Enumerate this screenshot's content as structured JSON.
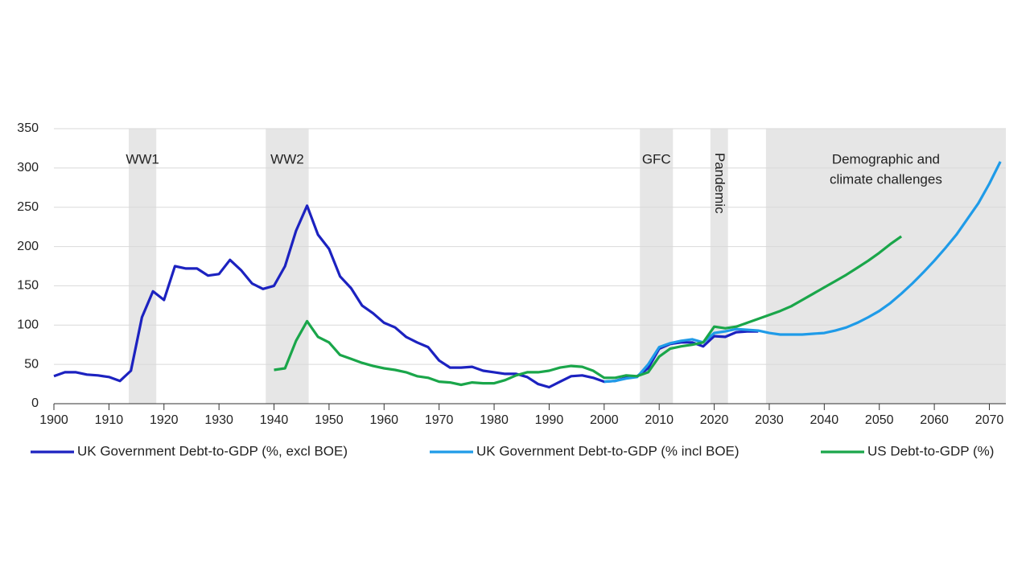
{
  "chart_data": {
    "type": "line",
    "x": [
      1900,
      1902,
      1904,
      1906,
      1908,
      1910,
      1912,
      1914,
      1916,
      1918,
      1920,
      1922,
      1924,
      1926,
      1928,
      1930,
      1932,
      1934,
      1936,
      1938,
      1940,
      1942,
      1944,
      1946,
      1948,
      1950,
      1952,
      1954,
      1956,
      1958,
      1960,
      1962,
      1964,
      1966,
      1968,
      1970,
      1972,
      1974,
      1976,
      1978,
      1980,
      1982,
      1984,
      1986,
      1988,
      1990,
      1992,
      1994,
      1996,
      1998,
      2000,
      2002,
      2004,
      2006,
      2008,
      2010,
      2012,
      2014,
      2016,
      2018,
      2020,
      2022,
      2024,
      2026,
      2028,
      2030,
      2032,
      2034,
      2036,
      2038,
      2040,
      2042,
      2044,
      2046,
      2048,
      2050,
      2052,
      2054,
      2056,
      2058,
      2060,
      2062,
      2064,
      2066,
      2068,
      2070,
      2072
    ],
    "series": [
      {
        "name": "UK Government Debt-to-GDP (%, excl BOE)",
        "color": "#1c22c0",
        "values": [
          35,
          40,
          40,
          37,
          36,
          34,
          29,
          42,
          110,
          143,
          132,
          175,
          172,
          172,
          163,
          165,
          183,
          170,
          153,
          146,
          150,
          175,
          220,
          252,
          215,
          197,
          162,
          147,
          125,
          115,
          103,
          97,
          85,
          78,
          72,
          55,
          46,
          46,
          47,
          42,
          40,
          38,
          38,
          34,
          25,
          21,
          28,
          35,
          36,
          33,
          28,
          29,
          33,
          35,
          45,
          70,
          76,
          78,
          78,
          73,
          86,
          85,
          91,
          92,
          92,
          null,
          null,
          null,
          null,
          null,
          null,
          null,
          null,
          null,
          null,
          null,
          null,
          null,
          null,
          null,
          null,
          null,
          null,
          null,
          null,
          null,
          null
        ]
      },
      {
        "name": "UK Government Debt-to-GDP (% incl BOE)",
        "color": "#1f9be8",
        "values": [
          null,
          null,
          null,
          null,
          null,
          null,
          null,
          null,
          null,
          null,
          null,
          null,
          null,
          null,
          null,
          null,
          null,
          null,
          null,
          null,
          null,
          null,
          null,
          null,
          null,
          null,
          null,
          null,
          null,
          null,
          null,
          null,
          null,
          null,
          null,
          null,
          null,
          null,
          null,
          null,
          null,
          null,
          null,
          null,
          null,
          null,
          null,
          null,
          null,
          null,
          28,
          29,
          32,
          34,
          50,
          72,
          77,
          80,
          82,
          78,
          90,
          92,
          95,
          94,
          93,
          90,
          88,
          88,
          88,
          89,
          90,
          93,
          97,
          103,
          110,
          118,
          128,
          140,
          153,
          167,
          182,
          198,
          215,
          235,
          255,
          280,
          308
        ]
      },
      {
        "name": "US Debt-to-GDP (%)",
        "color": "#1aa64a",
        "values": [
          null,
          null,
          null,
          null,
          null,
          null,
          null,
          null,
          null,
          null,
          null,
          null,
          null,
          null,
          null,
          null,
          null,
          null,
          null,
          null,
          43,
          45,
          80,
          105,
          85,
          78,
          62,
          57,
          52,
          48,
          45,
          43,
          40,
          35,
          33,
          28,
          27,
          24,
          27,
          26,
          26,
          30,
          36,
          40,
          40,
          42,
          46,
          48,
          47,
          42,
          33,
          33,
          36,
          35,
          40,
          60,
          70,
          73,
          75,
          78,
          98,
          96,
          98,
          103,
          108,
          113,
          118,
          124,
          132,
          140,
          148,
          156,
          164,
          173,
          182,
          192,
          203,
          213,
          null,
          null,
          null,
          null,
          null,
          null,
          null,
          null,
          null
        ]
      }
    ],
    "spans": [
      {
        "label_lines": [
          "WW1"
        ],
        "start": 1913.6,
        "end": 1918.6,
        "color": "#e6e6e6"
      },
      {
        "label_lines": [
          "WW2"
        ],
        "start": 1938.5,
        "end": 1946.3,
        "color": "#e6e6e6"
      },
      {
        "label_lines": [
          "GFC"
        ],
        "start": 2006.5,
        "end": 2012.5,
        "color": "#e6e6e6"
      },
      {
        "label_lines": [
          "Pandemic"
        ],
        "start": 2019.3,
        "end": 2022.5,
        "color": "#e6e6e6",
        "orientation": "vertical"
      },
      {
        "label_lines": [
          "Demographic and",
          "climate challenges"
        ],
        "start": 2029.4,
        "end": 2073,
        "color": "#e6e6e6"
      }
    ],
    "xlim": [
      1900,
      2073
    ],
    "xticks": [
      1900,
      1910,
      1920,
      1930,
      1940,
      1950,
      1960,
      1970,
      1980,
      1990,
      2000,
      2010,
      2020,
      2030,
      2040,
      2050,
      2060,
      2070
    ],
    "ylim": [
      0,
      350
    ],
    "yticks": [
      0,
      50,
      100,
      150,
      200,
      250,
      300,
      350
    ],
    "grid": true
  }
}
